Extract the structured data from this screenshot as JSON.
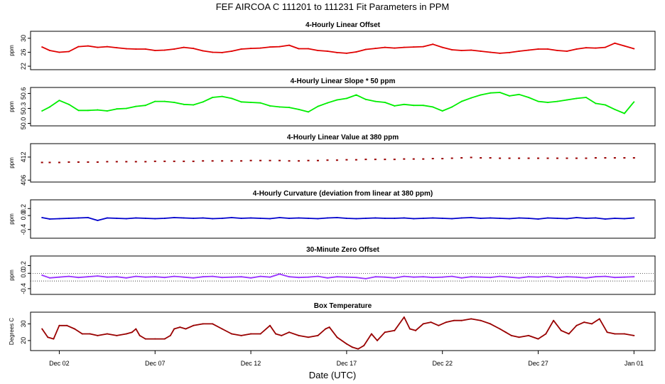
{
  "figure": {
    "title": "FEF   AIRCOA C   111201 to 111231   Fit Parameters in PPM",
    "xlabel": "Date (UTC)",
    "x_ticks": [
      {
        "day": 2,
        "label": "Dec 02"
      },
      {
        "day": 7,
        "label": "Dec 07"
      },
      {
        "day": 12,
        "label": "Dec 12"
      },
      {
        "day": 17,
        "label": "Dec 17"
      },
      {
        "day": 22,
        "label": "Dec 22"
      },
      {
        "day": 27,
        "label": "Dec 27"
      },
      {
        "day": 32,
        "label": "Jan 01"
      }
    ]
  },
  "chart_data": [
    {
      "type": "line",
      "title": "4-Hourly Linear Offset",
      "ylabel": "ppm",
      "color": "#e00000",
      "ylim": [
        21,
        32
      ],
      "yticks": [
        22,
        26,
        30
      ],
      "ytick_labels": [
        "22",
        "26",
        "30"
      ],
      "x": [
        1.1,
        1.5,
        2.0,
        2.5,
        3.0,
        3.5,
        4.0,
        4.5,
        5.0,
        5.5,
        6.0,
        6.5,
        7.0,
        7.5,
        8.0,
        8.5,
        9.0,
        9.5,
        10.0,
        10.5,
        11.0,
        11.5,
        12.0,
        12.5,
        13.0,
        13.5,
        14.0,
        14.5,
        15.0,
        15.5,
        16.0,
        16.5,
        17.0,
        17.5,
        18.0,
        18.5,
        19.0,
        19.5,
        20.0,
        20.5,
        21.0,
        21.5,
        22.0,
        22.5,
        23.0,
        23.5,
        24.0,
        24.5,
        25.0,
        25.5,
        26.0,
        26.5,
        27.0,
        27.5,
        28.0,
        28.5,
        29.0,
        29.5,
        30.0,
        30.5,
        31.0,
        31.5,
        32.0
      ],
      "values": [
        27.5,
        26.5,
        26.0,
        26.2,
        27.6,
        27.8,
        27.4,
        27.6,
        27.3,
        27.0,
        26.9,
        26.9,
        26.5,
        26.6,
        26.9,
        27.4,
        27.1,
        26.4,
        26.0,
        25.9,
        26.3,
        26.9,
        27.1,
        27.2,
        27.5,
        27.6,
        28.0,
        27.0,
        27.0,
        26.5,
        26.3,
        25.9,
        25.7,
        26.1,
        26.8,
        27.1,
        27.4,
        27.2,
        27.4,
        27.5,
        27.6,
        28.3,
        27.4,
        26.7,
        26.5,
        26.6,
        26.3,
        26.0,
        25.7,
        25.9,
        26.3,
        26.6,
        26.9,
        26.9,
        26.5,
        26.3,
        26.9,
        27.3,
        27.2,
        27.4,
        28.6,
        27.8,
        27.0
      ]
    },
    {
      "type": "line",
      "title": "4-Hourly Linear Slope * 50 ppm",
      "ylabel": "ppm",
      "color": "#00ee00",
      "ylim": [
        49.95,
        50.72
      ],
      "yticks": [
        50.0,
        50.3,
        50.6
      ],
      "ytick_labels": [
        "50.0",
        "50.3",
        "50.6"
      ],
      "x": [
        1.1,
        1.5,
        2.0,
        2.5,
        3.0,
        3.5,
        4.0,
        4.5,
        5.0,
        5.5,
        6.0,
        6.5,
        7.0,
        7.5,
        8.0,
        8.5,
        9.0,
        9.5,
        10.0,
        10.5,
        11.0,
        11.5,
        12.0,
        12.5,
        13.0,
        13.5,
        14.0,
        14.5,
        15.0,
        15.5,
        16.0,
        16.5,
        17.0,
        17.5,
        18.0,
        18.5,
        19.0,
        19.5,
        20.0,
        20.5,
        21.0,
        21.5,
        22.0,
        22.5,
        23.0,
        23.5,
        24.0,
        24.5,
        25.0,
        25.5,
        26.0,
        26.5,
        27.0,
        27.5,
        28.0,
        28.5,
        29.0,
        29.5,
        30.0,
        30.5,
        31.0,
        31.5,
        32.0
      ],
      "values": [
        50.25,
        50.33,
        50.46,
        50.38,
        50.26,
        50.26,
        50.27,
        50.25,
        50.29,
        50.3,
        50.34,
        50.36,
        50.44,
        50.44,
        50.42,
        50.38,
        50.37,
        50.43,
        50.52,
        50.54,
        50.5,
        50.43,
        50.42,
        50.41,
        50.35,
        50.33,
        50.32,
        50.28,
        50.23,
        50.34,
        50.41,
        50.47,
        50.5,
        50.57,
        50.48,
        50.44,
        50.42,
        50.35,
        50.38,
        50.36,
        50.36,
        50.33,
        50.25,
        50.33,
        50.44,
        50.51,
        50.57,
        50.61,
        50.62,
        50.55,
        50.58,
        50.52,
        50.44,
        50.42,
        50.44,
        50.47,
        50.5,
        50.52,
        50.4,
        50.37,
        50.28,
        50.2,
        50.43
      ]
    },
    {
      "type": "scatter",
      "title": "4-Hourly Linear Value at 380 ppm",
      "ylabel": "ppm",
      "color": "#990000",
      "ylim": [
        405.5,
        415.5
      ],
      "yticks": [
        406,
        412
      ],
      "ytick_labels": [
        "406",
        "412"
      ],
      "x": [
        1.1,
        1.5,
        2.0,
        2.5,
        3.0,
        3.5,
        4.0,
        4.5,
        5.0,
        5.5,
        6.0,
        6.5,
        7.0,
        7.5,
        8.0,
        8.5,
        9.0,
        9.5,
        10.0,
        10.5,
        11.0,
        11.5,
        12.0,
        12.5,
        13.0,
        13.5,
        14.0,
        14.5,
        15.0,
        15.5,
        16.0,
        16.5,
        17.0,
        17.5,
        18.0,
        18.5,
        19.0,
        19.5,
        20.0,
        20.5,
        21.0,
        21.5,
        22.0,
        22.5,
        23.0,
        23.5,
        24.0,
        24.5,
        25.0,
        25.5,
        26.0,
        26.5,
        27.0,
        27.5,
        28.0,
        28.5,
        29.0,
        29.5,
        30.0,
        30.5,
        31.0,
        31.5,
        32.0
      ],
      "values": [
        410.6,
        410.6,
        410.6,
        410.7,
        410.7,
        410.7,
        410.7,
        410.8,
        410.8,
        410.8,
        410.8,
        410.8,
        410.9,
        410.9,
        410.9,
        410.9,
        410.9,
        411.0,
        411.0,
        411.0,
        411.0,
        411.0,
        411.1,
        411.1,
        411.1,
        411.1,
        411.0,
        411.0,
        411.1,
        411.1,
        411.2,
        411.2,
        411.3,
        411.3,
        411.4,
        411.4,
        411.4,
        411.4,
        411.5,
        411.5,
        411.5,
        411.6,
        411.6,
        411.7,
        411.8,
        411.9,
        411.8,
        411.8,
        411.7,
        411.7,
        411.7,
        411.7,
        411.7,
        411.7,
        411.7,
        411.7,
        411.7,
        411.7,
        411.8,
        411.8,
        411.8,
        411.8,
        411.8
      ]
    },
    {
      "type": "line",
      "title": "4-Hourly Curvature (deviation from linear at 380 ppm)",
      "ylabel": "ppm",
      "color": "#0000cc",
      "ylim": [
        -0.65,
        0.45
      ],
      "yticks": [
        -0.4,
        0.0,
        0.2
      ],
      "ytick_labels": [
        "-0.4",
        "0.0",
        "0.2"
      ],
      "x": [
        1.1,
        1.5,
        2.0,
        2.5,
        3.0,
        3.5,
        4.0,
        4.5,
        5.0,
        5.5,
        6.0,
        6.5,
        7.0,
        7.5,
        8.0,
        8.5,
        9.0,
        9.5,
        10.0,
        10.5,
        11.0,
        11.5,
        12.0,
        12.5,
        13.0,
        13.5,
        14.0,
        14.5,
        15.0,
        15.5,
        16.0,
        16.5,
        17.0,
        17.5,
        18.0,
        18.5,
        19.0,
        19.5,
        20.0,
        20.5,
        21.0,
        21.5,
        22.0,
        22.5,
        23.0,
        23.5,
        24.0,
        24.5,
        25.0,
        25.5,
        26.0,
        26.5,
        27.0,
        27.5,
        28.0,
        28.5,
        29.0,
        29.5,
        30.0,
        30.5,
        31.0,
        31.5,
        32.0
      ],
      "values": [
        -0.06,
        -0.1,
        -0.09,
        -0.08,
        -0.07,
        -0.06,
        -0.14,
        -0.07,
        -0.08,
        -0.09,
        -0.07,
        -0.08,
        -0.09,
        -0.08,
        -0.06,
        -0.07,
        -0.08,
        -0.07,
        -0.09,
        -0.08,
        -0.06,
        -0.08,
        -0.07,
        -0.08,
        -0.09,
        -0.06,
        -0.08,
        -0.07,
        -0.08,
        -0.09,
        -0.07,
        -0.06,
        -0.08,
        -0.09,
        -0.08,
        -0.07,
        -0.08,
        -0.08,
        -0.07,
        -0.09,
        -0.08,
        -0.07,
        -0.08,
        -0.09,
        -0.07,
        -0.06,
        -0.08,
        -0.07,
        -0.08,
        -0.09,
        -0.07,
        -0.08,
        -0.1,
        -0.07,
        -0.08,
        -0.09,
        -0.06,
        -0.08,
        -0.07,
        -0.1,
        -0.08,
        -0.09,
        -0.07
      ]
    },
    {
      "type": "line",
      "title": "30-Minute Zero Offset",
      "ylabel": "ppm",
      "color": "#9933ff",
      "ylim": [
        -0.55,
        0.45
      ],
      "yticks": [
        -0.4,
        0.0,
        0.2
      ],
      "ytick_labels": [
        "-0.4",
        "0.0",
        "0.2"
      ],
      "ref_lines": [
        0.0,
        -0.2
      ],
      "x": [
        1.1,
        1.5,
        2.0,
        2.5,
        3.0,
        3.5,
        4.0,
        4.5,
        5.0,
        5.5,
        6.0,
        6.5,
        7.0,
        7.5,
        8.0,
        8.5,
        9.0,
        9.5,
        10.0,
        10.5,
        11.0,
        11.5,
        12.0,
        12.5,
        13.0,
        13.5,
        14.0,
        14.5,
        15.0,
        15.5,
        16.0,
        16.5,
        17.0,
        17.5,
        18.0,
        18.5,
        19.0,
        19.5,
        20.0,
        20.5,
        21.0,
        21.5,
        22.0,
        22.5,
        23.0,
        23.5,
        24.0,
        24.5,
        25.0,
        25.5,
        26.0,
        26.5,
        27.0,
        27.5,
        28.0,
        28.5,
        29.0,
        29.5,
        30.0,
        30.5,
        31.0,
        31.5,
        32.0
      ],
      "values": [
        -0.05,
        -0.12,
        -0.1,
        -0.08,
        -0.11,
        -0.09,
        -0.07,
        -0.1,
        -0.09,
        -0.12,
        -0.08,
        -0.1,
        -0.09,
        -0.11,
        -0.08,
        -0.1,
        -0.12,
        -0.09,
        -0.08,
        -0.11,
        -0.1,
        -0.09,
        -0.12,
        -0.08,
        -0.1,
        -0.02,
        -0.09,
        -0.11,
        -0.1,
        -0.08,
        -0.12,
        -0.09,
        -0.1,
        -0.11,
        -0.14,
        -0.09,
        -0.1,
        -0.12,
        -0.08,
        -0.1,
        -0.09,
        -0.11,
        -0.1,
        -0.08,
        -0.12,
        -0.09,
        -0.1,
        -0.11,
        -0.08,
        -0.1,
        -0.12,
        -0.09,
        -0.1,
        -0.08,
        -0.11,
        -0.09,
        -0.1,
        -0.12,
        -0.09,
        -0.08,
        -0.11,
        -0.1,
        -0.09
      ]
    },
    {
      "type": "line",
      "title": "Box Temperature",
      "ylabel": "Degrees C",
      "color": "#990000",
      "ylim": [
        14,
        37
      ],
      "yticks": [
        20,
        30
      ],
      "ytick_labels": [
        "20",
        "30"
      ],
      "x": [
        1.1,
        1.4,
        1.7,
        2.0,
        2.4,
        2.8,
        3.2,
        3.6,
        4.0,
        4.5,
        5.0,
        5.5,
        5.8,
        6.0,
        6.2,
        6.5,
        7.0,
        7.5,
        7.8,
        8.0,
        8.3,
        8.6,
        9.0,
        9.5,
        10.0,
        10.5,
        11.0,
        11.5,
        12.0,
        12.5,
        13.0,
        13.3,
        13.6,
        14.0,
        14.5,
        15.0,
        15.5,
        15.9,
        16.1,
        16.5,
        17.0,
        17.3,
        17.6,
        17.9,
        18.3,
        18.6,
        19.0,
        19.5,
        20.0,
        20.3,
        20.6,
        21.0,
        21.4,
        21.8,
        22.2,
        22.6,
        23.0,
        23.5,
        24.0,
        24.5,
        25.0,
        25.3,
        25.6,
        26.0,
        26.5,
        27.0,
        27.4,
        27.8,
        28.2,
        28.6,
        29.0,
        29.4,
        29.8,
        30.2,
        30.6,
        31.0,
        31.5,
        32.0
      ],
      "values": [
        27,
        22,
        21,
        29,
        29,
        27,
        24,
        24,
        23,
        24,
        23,
        24,
        25,
        27,
        23,
        21,
        21,
        21,
        23,
        27,
        28,
        27,
        29,
        30,
        30,
        27,
        24,
        23,
        24,
        24,
        29,
        24,
        23,
        25,
        23,
        22,
        23,
        27,
        28,
        22,
        18,
        16,
        15,
        17,
        24,
        20,
        25,
        26,
        34,
        27,
        26,
        30,
        31,
        29,
        31,
        32,
        32,
        33,
        32,
        30,
        27,
        25,
        23,
        22,
        23,
        21,
        24,
        32,
        26,
        24,
        29,
        31,
        30,
        33,
        25,
        24,
        24,
        23
      ]
    }
  ]
}
